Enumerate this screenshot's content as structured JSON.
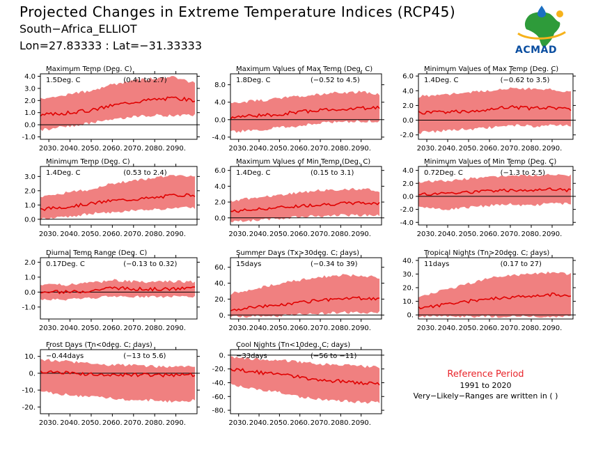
{
  "header": {
    "title": "Projected Changes in Extreme Temperature Indices (RCP45)",
    "location": "South−Africa_ELLIOT",
    "coords": "Lon=27.83333 : Lat=−31.33333"
  },
  "logo": {
    "text": "ACMAD",
    "icon": "africa-map-logo"
  },
  "colors": {
    "band": "#f08080",
    "line": "#e00000",
    "zero": "#000000"
  },
  "reference": {
    "title": "Reference Period",
    "years": "1991 to 2020",
    "note": "Very−Likely−Ranges are written in ( )"
  },
  "chart_data": [
    {
      "type": "line",
      "title": "Maximum Temp (Deg. C)",
      "change": "1.5Deg. C",
      "range": "(0.41 to 2.7)",
      "x": [
        2026,
        2100
      ],
      "ylim": [
        -1.2,
        4.2
      ],
      "yticks": [
        -1.0,
        0.0,
        1.0,
        2.0,
        3.0,
        4.0
      ],
      "ytick_labels": [
        "-1.0",
        "0.0",
        "1.0",
        "2.0",
        "3.0",
        "4.0"
      ],
      "xticks": [
        2030,
        2040,
        2050,
        2060,
        2070,
        2080,
        2090
      ],
      "xtick_labels": [
        "2030.",
        "2040.",
        "2050.",
        "2060.",
        "2070.",
        "2080.",
        "2090."
      ],
      "series": [
        {
          "x": [
            2026,
            2040,
            2050,
            2060,
            2070,
            2080,
            2090,
            2099
          ],
          "values": [
            0.8,
            1.0,
            1.2,
            1.6,
            1.9,
            2.1,
            2.2,
            2.0
          ]
        }
      ],
      "band": {
        "low": [
          -0.3,
          0.0,
          0.3,
          0.6,
          0.8,
          0.9,
          0.9,
          0.9
        ],
        "high": [
          2.0,
          2.4,
          2.7,
          3.2,
          3.5,
          3.7,
          3.8,
          3.3
        ]
      }
    },
    {
      "type": "line",
      "title": "Maximum Values of Max Temp (Deg. C)",
      "change": "1.8Deg. C",
      "range": "(−0.52 to 4.5)",
      "x": [
        2026,
        2100
      ],
      "ylim": [
        -4.5,
        10.5
      ],
      "yticks": [
        -4.0,
        0.0,
        4.0,
        8.0
      ],
      "ytick_labels": [
        "-4.0",
        "0.0",
        "4.0",
        "8.0"
      ],
      "xticks": [
        2030,
        2040,
        2050,
        2060,
        2070,
        2080,
        2090
      ],
      "xtick_labels": [
        "2030.",
        "2040.",
        "2050.",
        "2060.",
        "2070.",
        "2080.",
        "2090."
      ],
      "series": [
        {
          "x": [
            2026,
            2040,
            2050,
            2060,
            2070,
            2080,
            2090,
            2099
          ],
          "values": [
            0.5,
            1.0,
            1.2,
            1.8,
            2.2,
            2.4,
            2.6,
            2.8
          ]
        }
      ],
      "band": {
        "low": [
          -2.5,
          -2.0,
          -1.5,
          -1.0,
          -0.5,
          -0.2,
          0.0,
          0.0
        ],
        "high": [
          3.5,
          4.0,
          4.5,
          5.0,
          5.5,
          5.8,
          6.0,
          5.5
        ]
      }
    },
    {
      "type": "line",
      "title": "Minimum Values of Max Temp (Deg. C)",
      "change": "1.4Deg. C",
      "range": "(−0.62 to 3.5)",
      "x": [
        2026,
        2100
      ],
      "ylim": [
        -2.6,
        6.3
      ],
      "yticks": [
        -2.0,
        0.0,
        2.0,
        4.0,
        6.0
      ],
      "ytick_labels": [
        "-2.0",
        "0.0",
        "2.0",
        "4.0",
        "6.0"
      ],
      "xticks": [
        2030,
        2040,
        2050,
        2060,
        2070,
        2080,
        2090
      ],
      "xtick_labels": [
        "2030.",
        "2040.",
        "2050.",
        "2060.",
        "2070.",
        "2080.",
        "2090."
      ],
      "series": [
        {
          "x": [
            2026,
            2040,
            2050,
            2060,
            2070,
            2080,
            2090,
            2099
          ],
          "values": [
            1.0,
            1.1,
            1.2,
            1.5,
            1.8,
            1.6,
            1.7,
            1.5
          ]
        }
      ],
      "band": {
        "low": [
          -1.5,
          -1.2,
          -1.0,
          -0.8,
          -0.5,
          -0.6,
          -0.5,
          -0.6
        ],
        "high": [
          3.0,
          3.3,
          3.6,
          3.8,
          4.2,
          4.0,
          4.0,
          3.6
        ]
      }
    },
    {
      "type": "line",
      "title": "Minimum Temp (Deg. C)",
      "change": "1.4Deg. C",
      "range": "(0.53 to 2.4)",
      "x": [
        2026,
        2100
      ],
      "ylim": [
        -0.4,
        3.7
      ],
      "yticks": [
        0.0,
        1.0,
        2.0,
        3.0
      ],
      "ytick_labels": [
        "0.0",
        "1.0",
        "2.0",
        "3.0"
      ],
      "xticks": [
        2030,
        2040,
        2050,
        2060,
        2070,
        2080,
        2090
      ],
      "xtick_labels": [
        "2030.",
        "2040.",
        "2050.",
        "2060.",
        "2070.",
        "2080.",
        "2090."
      ],
      "series": [
        {
          "x": [
            2026,
            2040,
            2050,
            2060,
            2070,
            2080,
            2090,
            2099
          ],
          "values": [
            0.7,
            0.9,
            1.1,
            1.3,
            1.4,
            1.5,
            1.7,
            1.7
          ]
        }
      ],
      "band": {
        "low": [
          0.1,
          0.3,
          0.5,
          0.6,
          0.7,
          0.8,
          0.9,
          0.9
        ],
        "high": [
          1.5,
          1.8,
          2.0,
          2.4,
          2.6,
          2.8,
          3.0,
          2.9
        ]
      }
    },
    {
      "type": "line",
      "title": "Maximum Values of Min Temp (Deg. C)",
      "change": "1.4Deg. C",
      "range": "(0.15 to 3.1)",
      "x": [
        2026,
        2100
      ],
      "ylim": [
        -0.9,
        6.5
      ],
      "yticks": [
        0.0,
        2.0,
        4.0,
        6.0
      ],
      "ytick_labels": [
        "0.0",
        "2.0",
        "4.0",
        "6.0"
      ],
      "xticks": [
        2030,
        2040,
        2050,
        2060,
        2070,
        2080,
        2090
      ],
      "xtick_labels": [
        "2030.",
        "2040.",
        "2050.",
        "2060.",
        "2070.",
        "2080.",
        "2090."
      ],
      "series": [
        {
          "x": [
            2026,
            2040,
            2050,
            2060,
            2070,
            2080,
            2090,
            2099
          ],
          "values": [
            0.8,
            1.1,
            1.3,
            1.5,
            1.7,
            1.8,
            1.9,
            1.8
          ]
        }
      ],
      "band": {
        "low": [
          -0.3,
          -0.1,
          0.1,
          0.3,
          0.4,
          0.5,
          0.5,
          0.5
        ],
        "high": [
          2.0,
          2.4,
          2.7,
          3.0,
          3.3,
          3.4,
          3.5,
          3.2
        ]
      }
    },
    {
      "type": "line",
      "title": "Minimum Values of Min Temp (Deg. C)",
      "change": "0.72Deg. C",
      "range": "(−1.3 to 2.5)",
      "x": [
        2026,
        2100
      ],
      "ylim": [
        -4.4,
        4.6
      ],
      "yticks": [
        -4.0,
        -2.0,
        0.0,
        2.0,
        4.0
      ],
      "ytick_labels": [
        "-4.0",
        "-2.0",
        "0.0",
        "2.0",
        "4.0"
      ],
      "xticks": [
        2030,
        2040,
        2050,
        2060,
        2070,
        2080,
        2090
      ],
      "xtick_labels": [
        "2030.",
        "2040.",
        "2050.",
        "2060.",
        "2070.",
        "2080.",
        "2090."
      ],
      "series": [
        {
          "x": [
            2026,
            2040,
            2050,
            2060,
            2070,
            2080,
            2090,
            2099
          ],
          "values": [
            0.3,
            0.5,
            0.6,
            0.8,
            0.9,
            1.0,
            1.1,
            0.9
          ]
        }
      ],
      "band": {
        "low": [
          -1.5,
          -1.8,
          -1.5,
          -1.2,
          -1.0,
          -1.2,
          -0.8,
          -1.0
        ],
        "high": [
          2.0,
          2.2,
          2.5,
          2.8,
          3.0,
          3.0,
          3.2,
          3.0
        ]
      }
    },
    {
      "type": "line",
      "title": "Diurnal Temp Range (Deg. C)",
      "change": "0.17Deg. C",
      "range": "(−0.13 to 0.32)",
      "x": [
        2026,
        2100
      ],
      "ylim": [
        -1.8,
        2.3
      ],
      "yticks": [
        -1.0,
        0.0,
        1.0,
        2.0
      ],
      "ytick_labels": [
        "-1.0",
        "0.0",
        "1.0",
        "2.0"
      ],
      "xticks": [
        2030,
        2040,
        2050,
        2060,
        2070,
        2080,
        2090
      ],
      "xtick_labels": [
        "2030.",
        "2040.",
        "2050.",
        "2060.",
        "2070.",
        "2080.",
        "2090."
      ],
      "series": [
        {
          "x": [
            2026,
            2040,
            2050,
            2060,
            2070,
            2080,
            2090,
            2099
          ],
          "values": [
            0.0,
            0.0,
            0.1,
            0.3,
            0.2,
            0.2,
            0.2,
            0.3
          ]
        }
      ],
      "band": {
        "low": [
          -0.4,
          -0.4,
          -0.3,
          -0.2,
          -0.2,
          -0.2,
          -0.2,
          -0.2
        ],
        "high": [
          0.4,
          0.4,
          0.5,
          0.7,
          0.6,
          0.6,
          0.6,
          0.6
        ]
      }
    },
    {
      "type": "line",
      "title": "Summer Days (Tx>30deg. C; days)",
      "change": "15days",
      "range": "(−0.34 to 39)",
      "x": [
        2026,
        2100
      ],
      "ylim": [
        -5,
        72
      ],
      "yticks": [
        0,
        20,
        40,
        60
      ],
      "ytick_labels": [
        "0.",
        "20.",
        "40.",
        "60."
      ],
      "xticks": [
        2030,
        2040,
        2050,
        2060,
        2070,
        2080,
        2090
      ],
      "xtick_labels": [
        "2030.",
        "2040.",
        "2050.",
        "2060.",
        "2070.",
        "2080.",
        "2090."
      ],
      "series": [
        {
          "x": [
            2026,
            2040,
            2050,
            2060,
            2070,
            2080,
            2090,
            2099
          ],
          "values": [
            7,
            10,
            13,
            16,
            19,
            20,
            21,
            21
          ]
        }
      ],
      "band": {
        "low": [
          0,
          0,
          1,
          3,
          4,
          5,
          5,
          5
        ],
        "high": [
          25,
          32,
          38,
          42,
          46,
          48,
          48,
          45
        ]
      }
    },
    {
      "type": "line",
      "title": "Tropical Nights (Tn>20deg. C; days)",
      "change": "11days",
      "range": "(0.17 to 27)",
      "x": [
        2026,
        2100
      ],
      "ylim": [
        -3,
        42
      ],
      "yticks": [
        0,
        10,
        20,
        30,
        40
      ],
      "ytick_labels": [
        "0.",
        "10.",
        "20.",
        "30.",
        "40."
      ],
      "xticks": [
        2030,
        2040,
        2050,
        2060,
        2070,
        2080,
        2090
      ],
      "xtick_labels": [
        "2030.",
        "2040.",
        "2050.",
        "2060.",
        "2070.",
        "2080.",
        "2090."
      ],
      "series": [
        {
          "x": [
            2026,
            2040,
            2050,
            2060,
            2070,
            2080,
            2090,
            2099
          ],
          "values": [
            5,
            8,
            10,
            12,
            13,
            14,
            15,
            14
          ]
        }
      ],
      "band": {
        "low": [
          0,
          0,
          0,
          0,
          0,
          0,
          0,
          0
        ],
        "high": [
          12,
          18,
          22,
          26,
          28,
          29,
          30,
          29
        ]
      }
    },
    {
      "type": "line",
      "title": "Frost Days (Tn<0deg. C; days)",
      "change": "−0.44days",
      "range": "(−13 to 5.6)",
      "x": [
        2026,
        2100
      ],
      "ylim": [
        -24,
        14
      ],
      "yticks": [
        -20,
        -10,
        0,
        10
      ],
      "ytick_labels": [
        "-20.",
        "-10.",
        "0.",
        "10."
      ],
      "xticks": [
        2030,
        2040,
        2050,
        2060,
        2070,
        2080,
        2090
      ],
      "xtick_labels": [
        "2030.",
        "2040.",
        "2050.",
        "2060.",
        "2070.",
        "2080.",
        "2090."
      ],
      "series": [
        {
          "x": [
            2026,
            2040,
            2050,
            2060,
            2070,
            2080,
            2090,
            2099
          ],
          "values": [
            1,
            0,
            -0.5,
            -1,
            -1,
            -1,
            -1,
            -1
          ]
        }
      ],
      "band": {
        "low": [
          -10,
          -12,
          -13,
          -14,
          -15,
          -15,
          -16,
          -15
        ],
        "high": [
          7,
          6,
          5,
          4,
          4,
          3,
          3,
          3
        ]
      }
    },
    {
      "type": "line",
      "title": "Cool Nights (Tn<10deg. C; days)",
      "change": "−33days",
      "range": "(−56 to −11)",
      "x": [
        2026,
        2100
      ],
      "ylim": [
        -85,
        8
      ],
      "yticks": [
        -80,
        -60,
        -40,
        -20,
        0
      ],
      "ytick_labels": [
        "-80.",
        "-60.",
        "-40.",
        "-20.",
        "0."
      ],
      "xticks": [
        2030,
        2040,
        2050,
        2060,
        2070,
        2080,
        2090
      ],
      "xtick_labels": [
        "2030.",
        "2040.",
        "2050.",
        "2060.",
        "2070.",
        "2080.",
        "2090."
      ],
      "series": [
        {
          "x": [
            2026,
            2040,
            2050,
            2060,
            2070,
            2080,
            2090,
            2099
          ],
          "values": [
            -20,
            -25,
            -28,
            -32,
            -36,
            -38,
            -40,
            -42
          ]
        }
      ],
      "band": {
        "low": [
          -40,
          -48,
          -52,
          -58,
          -62,
          -64,
          -66,
          -66
        ],
        "high": [
          -5,
          -8,
          -10,
          -12,
          -15,
          -17,
          -18,
          -20
        ]
      }
    }
  ]
}
